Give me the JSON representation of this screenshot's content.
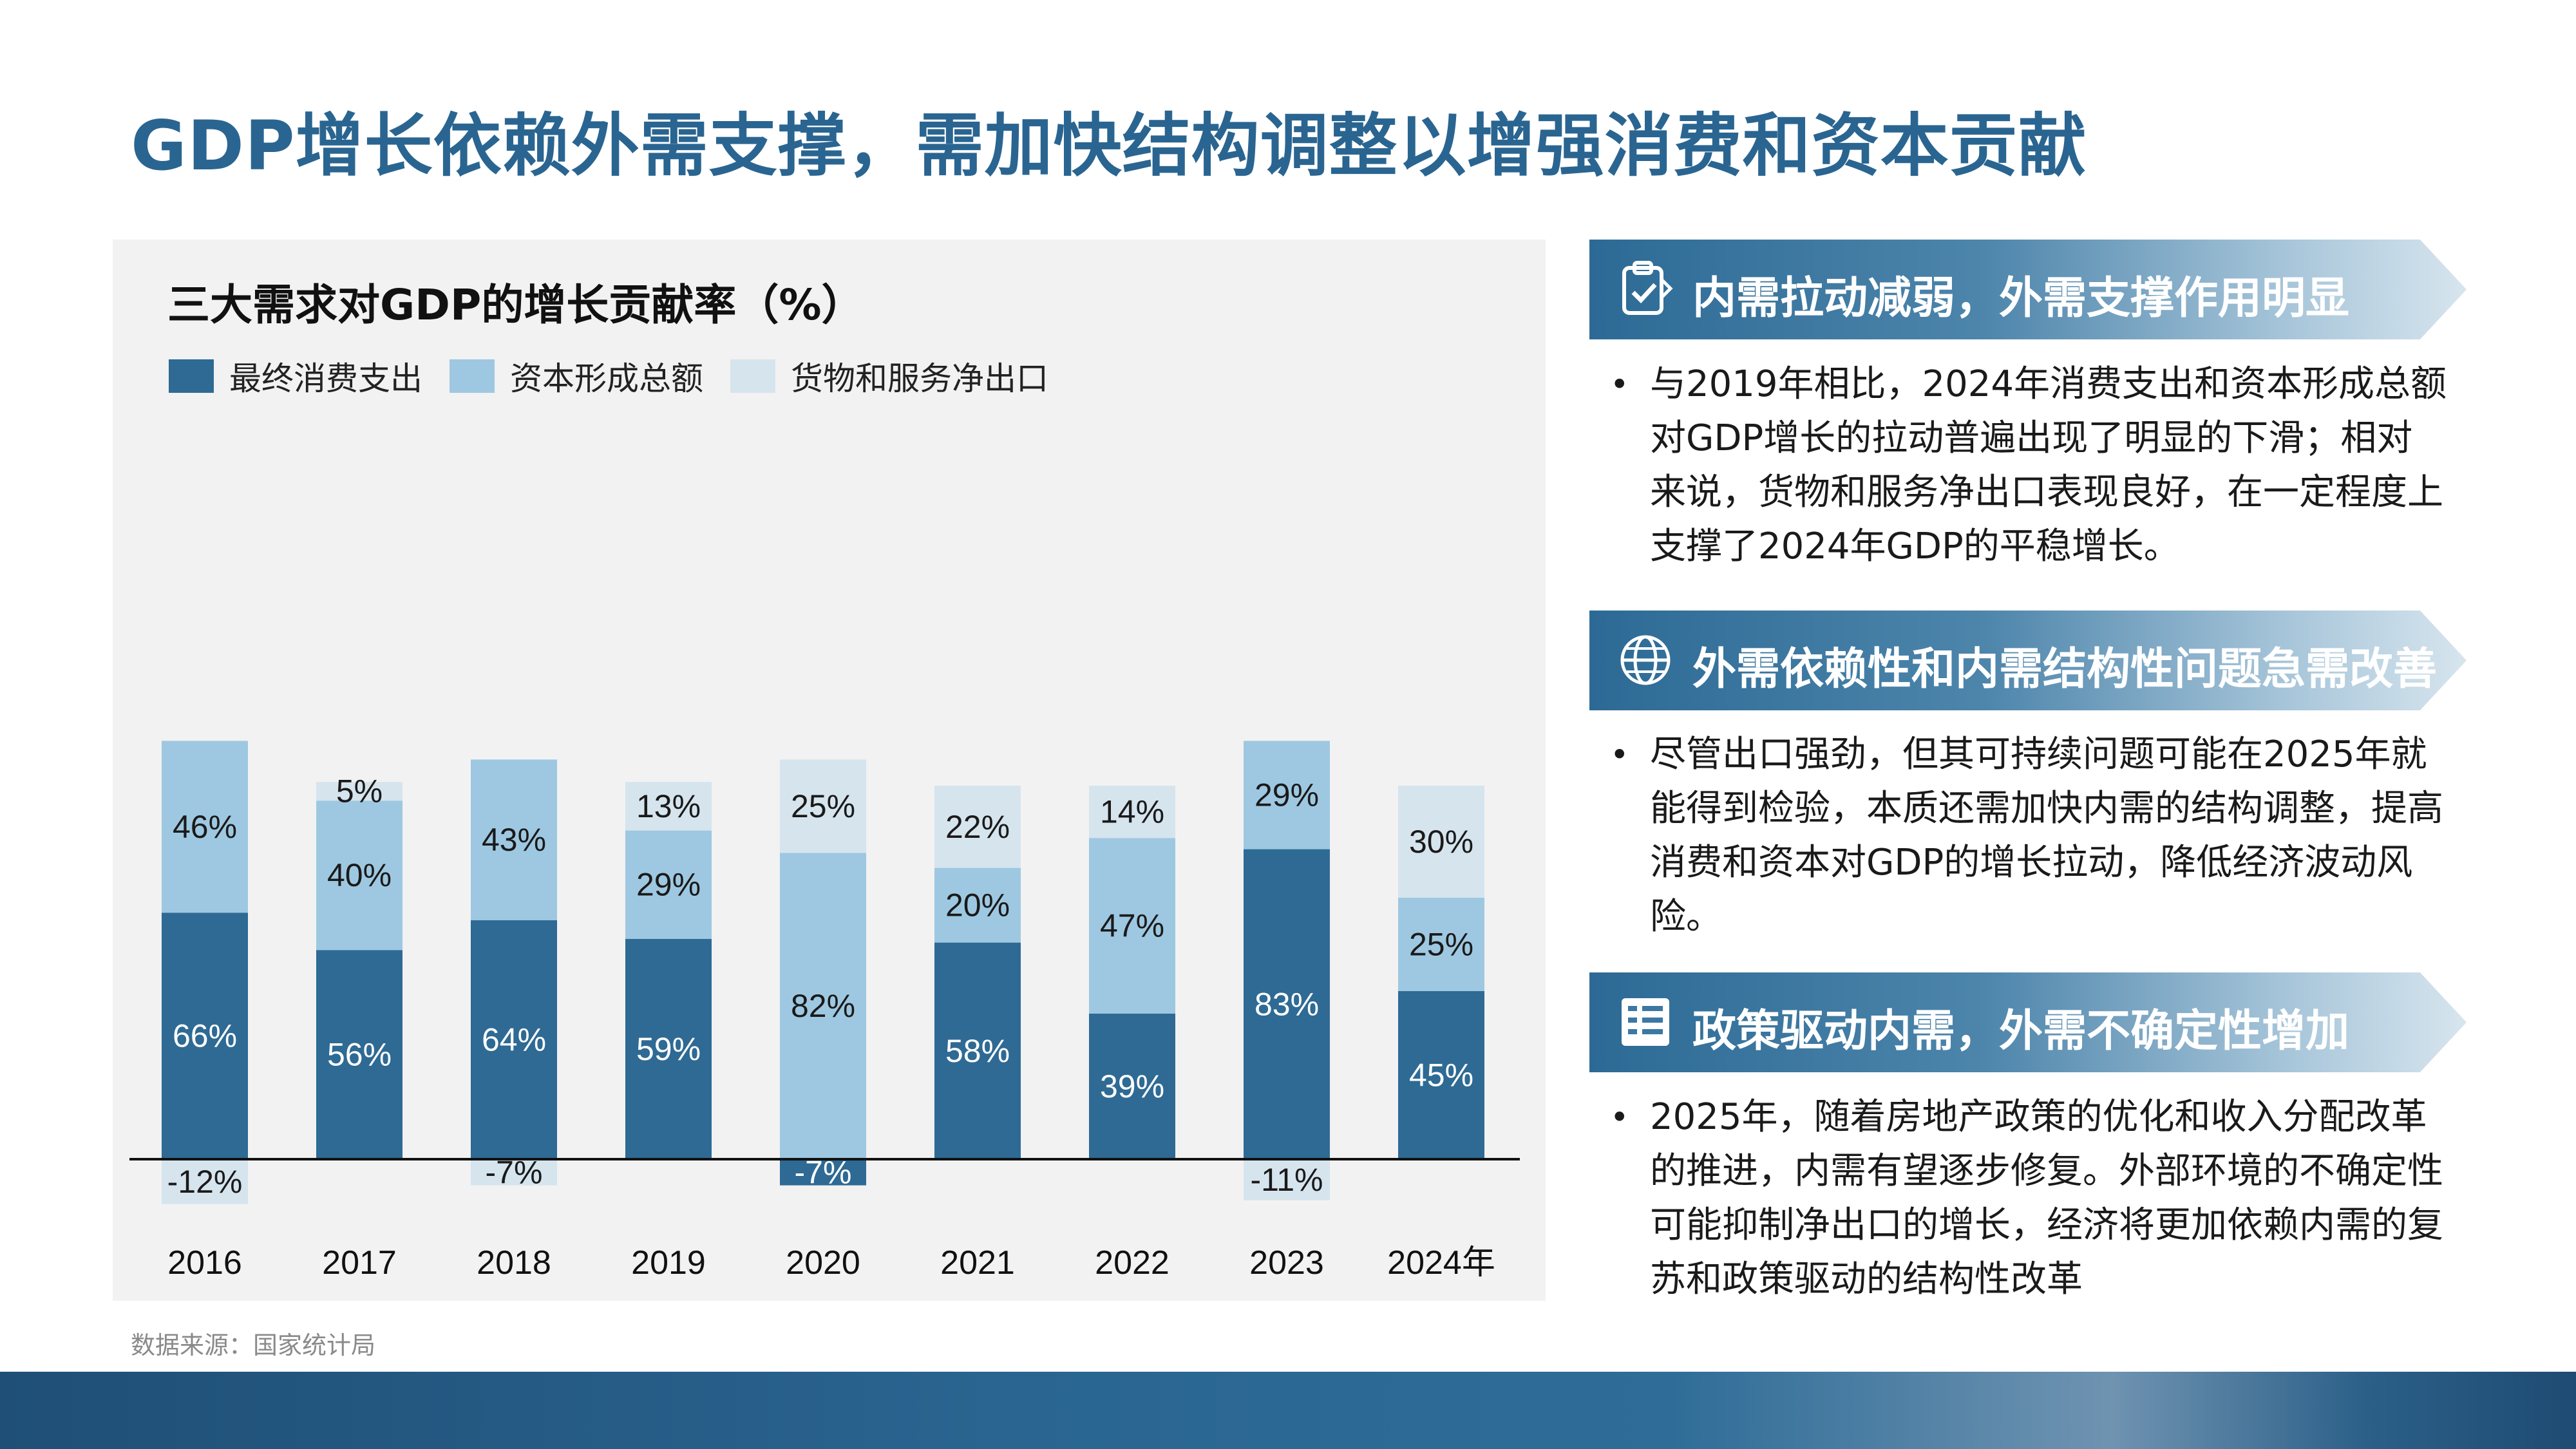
{
  "page": {
    "title": "GDP增长依赖外需支撑，需加快结构调整以增强消费和资本贡献",
    "source": "数据来源：国家统计局"
  },
  "chart": {
    "title": "三大需求对GDP的增长贡献率（%）",
    "legend": [
      "最终消费支出",
      "资本形成总额",
      "货物和服务净出口"
    ]
  },
  "colors": {
    "consumption": "#2e6a94",
    "capital": "#9ec8e1",
    "net_exports": "#d6e4ee",
    "title": "#2a6591"
  },
  "chart_data": {
    "type": "bar",
    "stacked": true,
    "title": "三大需求对GDP的增长贡献率（%）",
    "categories": [
      "2016",
      "2017",
      "2018",
      "2019",
      "2020",
      "2021",
      "2022",
      "2023",
      "2024年"
    ],
    "series": [
      {
        "name": "最终消费支出",
        "values": [
          66,
          56,
          64,
          59,
          -7,
          58,
          39,
          83,
          45
        ]
      },
      {
        "name": "资本形成总额",
        "values": [
          46,
          40,
          43,
          29,
          82,
          20,
          47,
          29,
          25
        ]
      },
      {
        "name": "货物和服务净出口",
        "values": [
          -12,
          5,
          -7,
          13,
          25,
          22,
          14,
          -11,
          30
        ]
      }
    ],
    "legend_position": "top-left",
    "grid": false
  },
  "sections": [
    {
      "icon": "clipboard-check-icon",
      "title": "内需拉动减弱，外需支撑作用明显",
      "bullet": "与2019年相比，2024年消费支出和资本形成总额对GDP增长的拉动普遍出现了明显的下滑；相对来说，货物和服务净出口表现良好，在一定程度上支撑了2024年GDP的平稳增长。"
    },
    {
      "icon": "globe-icon",
      "title": "外需依赖性和内需结构性问题急需改善",
      "bullet": "尽管出口强劲，但其可持续问题可能在2025年就能得到检验，本质还需加快内需的结构调整，提高消费和资本对GDP的增长拉动，降低经济波动风险。"
    },
    {
      "icon": "policy-document-icon",
      "title": "政策驱动内需，外需不确定性增加",
      "bullet": "2025年，随着房地产政策的优化和收入分配改革的推进，内需有望逐步修复。外部环境的不确定性可能抑制净出口的增长，经济将更加依赖内需的复苏和政策驱动的结构性改革"
    }
  ]
}
